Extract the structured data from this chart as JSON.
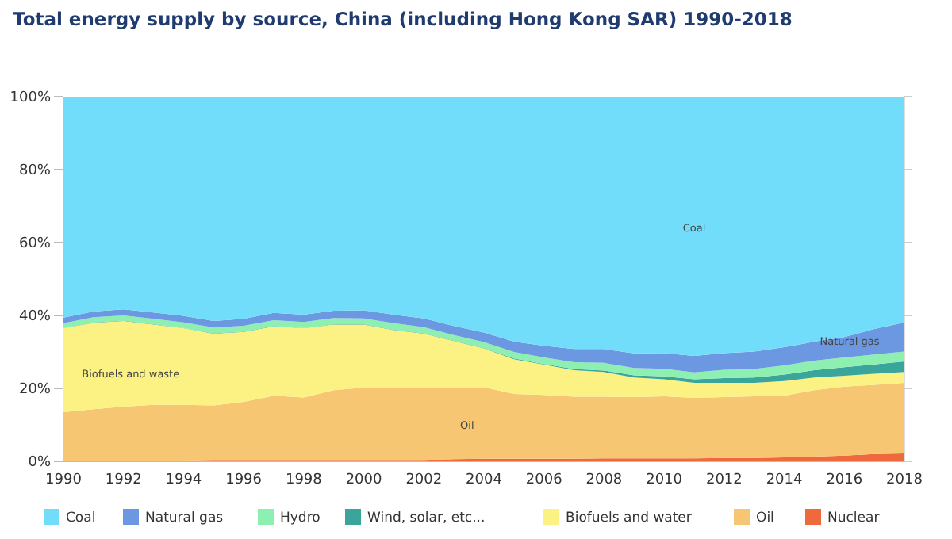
{
  "chart_data": {
    "type": "area",
    "stacked": true,
    "title": "Total energy supply by source, China (including Hong Kong SAR) 1990-2018",
    "x": [
      1990,
      1991,
      1992,
      1993,
      1994,
      1995,
      1996,
      1997,
      1998,
      1999,
      2000,
      2001,
      2002,
      2003,
      2004,
      2005,
      2006,
      2007,
      2008,
      2009,
      2010,
      2011,
      2012,
      2013,
      2014,
      2015,
      2016,
      2017,
      2018
    ],
    "series": [
      {
        "name": "Nuclear",
        "color": "#ee6a3c",
        "values": [
          0,
          0,
          0,
          0,
          0.2,
          0.4,
          0.4,
          0.4,
          0.4,
          0.4,
          0.4,
          0.4,
          0.4,
          0.6,
          0.7,
          0.7,
          0.7,
          0.7,
          0.8,
          0.8,
          0.8,
          0.8,
          0.9,
          0.9,
          1.1,
          1.3,
          1.6,
          2.0,
          2.2
        ]
      },
      {
        "name": "Oil",
        "color": "#f7c673",
        "values": [
          13.5,
          14.3,
          15,
          15.5,
          15.3,
          14.9,
          15.9,
          17.6,
          17.1,
          19.1,
          19.8,
          19.6,
          19.8,
          19.4,
          19.6,
          17.8,
          17.5,
          17,
          16.9,
          16.8,
          17,
          16.6,
          16.7,
          16.9,
          16.9,
          18.2,
          18.9,
          19,
          19.3
        ]
      },
      {
        "name": "Biofuels and water",
        "color": "#fbf283",
        "values": [
          23,
          23.7,
          23.5,
          22,
          21,
          19.7,
          19.2,
          19,
          19,
          18,
          17.3,
          16,
          14.8,
          13,
          10.7,
          9.5,
          8.3,
          7.3,
          6.8,
          5.4,
          4.7,
          4.1,
          3.9,
          3.7,
          4,
          3.5,
          3,
          3,
          3
        ]
      },
      {
        "name": "Wind, solar, etc...",
        "color": "#3aa59b",
        "values": [
          0.1,
          0.1,
          0.1,
          0.1,
          0.1,
          0.1,
          0.1,
          0.1,
          0.1,
          0.1,
          0.1,
          0.1,
          0.1,
          0.1,
          0.1,
          0.2,
          0.2,
          0.3,
          0.4,
          0.6,
          0.8,
          1.0,
          1.3,
          1.5,
          1.8,
          2.0,
          2.3,
          2.6,
          2.9
        ]
      },
      {
        "name": "Hydro",
        "color": "#8ef0b0",
        "values": [
          1.3,
          1.4,
          1.4,
          1.5,
          1.5,
          1.6,
          1.6,
          1.6,
          1.6,
          1.7,
          1.6,
          1.8,
          1.7,
          1.5,
          1.6,
          1.8,
          1.8,
          1.9,
          2.1,
          2.0,
          2.1,
          1.9,
          2.3,
          2.3,
          2.5,
          2.6,
          2.7,
          2.7,
          2.7
        ]
      },
      {
        "name": "Natural gas",
        "color": "#6b98e0",
        "values": [
          1.5,
          1.6,
          1.7,
          1.7,
          1.8,
          1.8,
          1.9,
          2.0,
          2.0,
          2.0,
          2.2,
          2.3,
          2.4,
          2.5,
          2.6,
          2.8,
          3.2,
          3.6,
          3.8,
          4.0,
          4.3,
          4.5,
          4.6,
          4.8,
          5.0,
          5.2,
          5.6,
          7.0,
          8.0
        ]
      },
      {
        "name": "Coal",
        "color": "#72dcfb",
        "values": [
          60.6,
          58.9,
          58.3,
          59.2,
          60.1,
          61.5,
          60.9,
          59.3,
          59.8,
          58.7,
          58.6,
          59.8,
          60.8,
          62.9,
          64.7,
          67.2,
          68.3,
          69.2,
          69.2,
          70.4,
          70.3,
          71.1,
          70.3,
          69.9,
          68.7,
          67.2,
          65.9,
          63.7,
          61.9
        ]
      }
    ],
    "xlim": [
      1990,
      2018
    ],
    "xticks": [
      1990,
      1992,
      1994,
      1996,
      1998,
      2000,
      2002,
      2004,
      2006,
      2008,
      2010,
      2012,
      2014,
      2016,
      2018
    ],
    "ylim": [
      0,
      100
    ],
    "yticks": [
      {
        "value": 0,
        "label": "0%"
      },
      {
        "value": 20,
        "label": "20%"
      },
      {
        "value": 40,
        "label": "40%"
      },
      {
        "value": 60,
        "label": "60%"
      },
      {
        "value": 80,
        "label": "80%"
      },
      {
        "value": 100,
        "label": "100%"
      }
    ],
    "grid": false,
    "legend": "bottom",
    "annotations": [
      "Coal",
      "Natural gas",
      "Biofuels and waste",
      "Oil"
    ]
  }
}
